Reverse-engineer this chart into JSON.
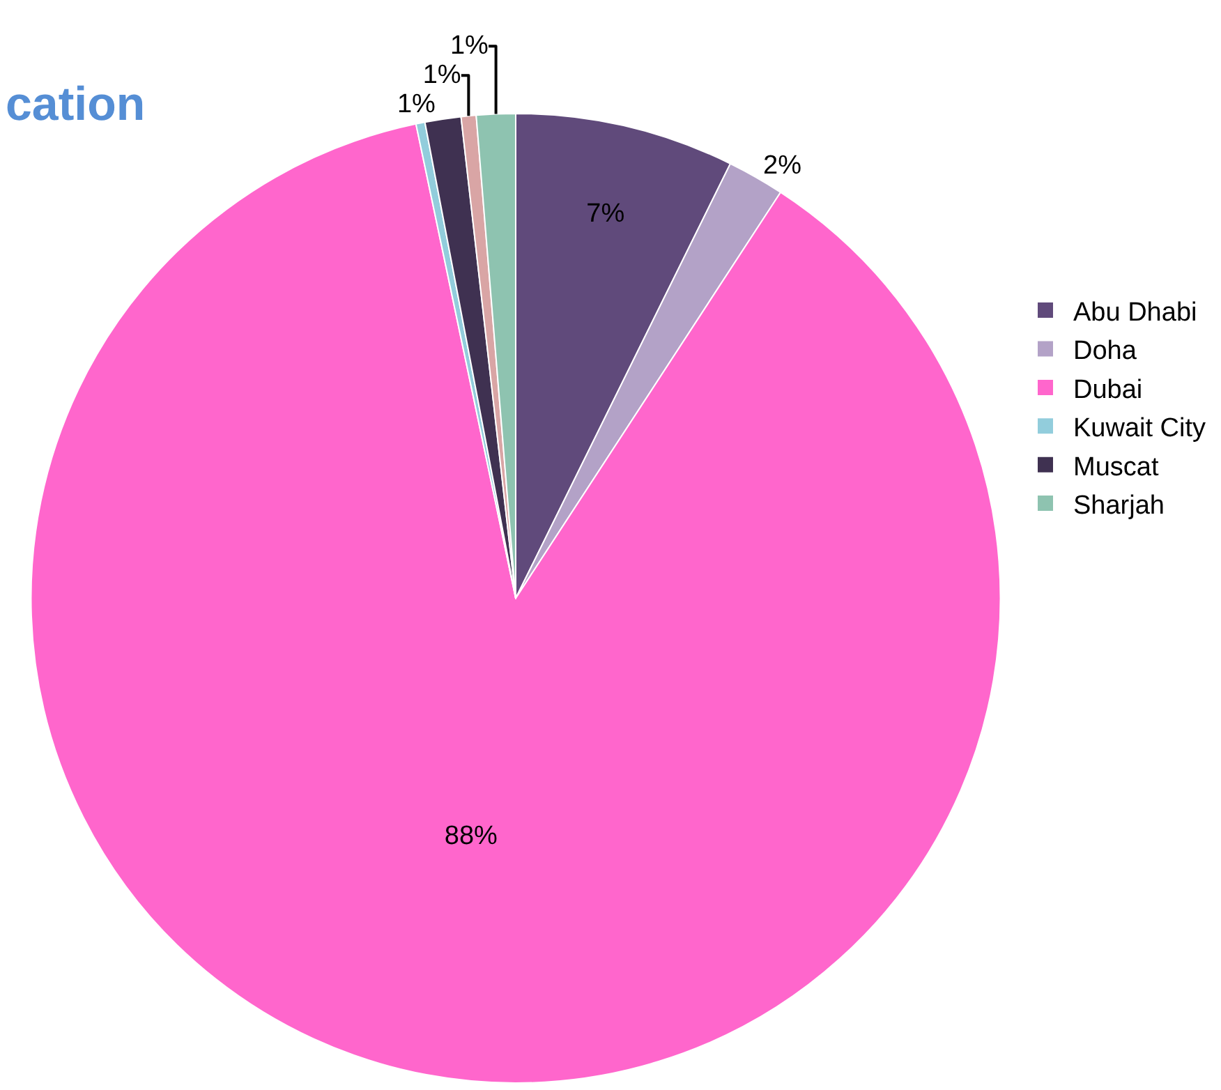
{
  "chart_data": {
    "type": "pie",
    "title": "cation",
    "categories": [
      "Abu Dhabi",
      "Doha",
      "Dubai",
      "Kuwait City",
      "Muscat",
      null,
      "Sharjah"
    ],
    "values": [
      7.3,
      1.9,
      87.5,
      0.3,
      1.2,
      0.5,
      1.3
    ],
    "colors": [
      "#604a7b",
      "#b3a2c7",
      "#ff66cc",
      "#92cddc",
      "#3f3151",
      "#d9a5a5",
      "#8ec3b0"
    ],
    "value_labels": [
      "7%",
      "2%",
      "88%",
      null,
      "1%",
      "1%",
      "1%"
    ],
    "legend": "right"
  }
}
